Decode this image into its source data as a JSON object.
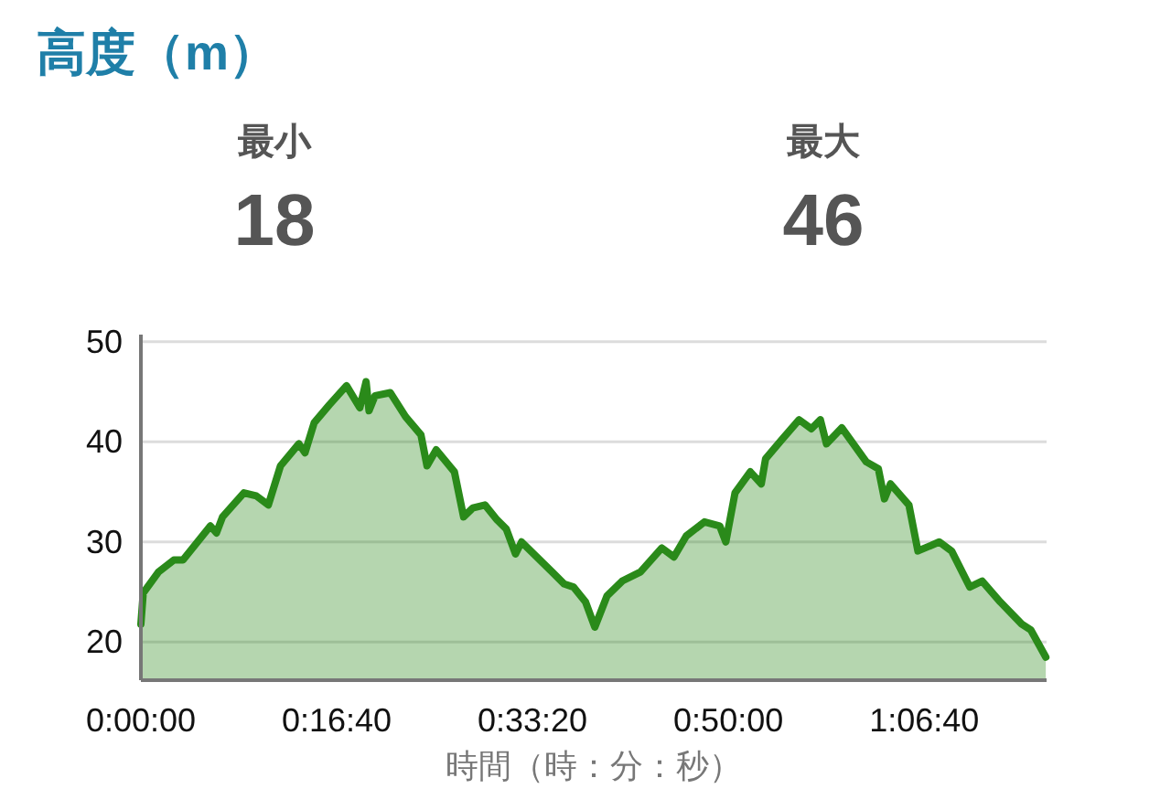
{
  "chart_data": {
    "type": "area",
    "title": "高度（m）",
    "xlabel": "時間（時：分：秒）",
    "annotations": [
      "最小",
      "18",
      "最大",
      "46"
    ],
    "series": [
      {
        "color": "#2a8a1a",
        "x": [
          0,
          12,
          90,
          168,
          215,
          277,
          355,
          386,
          417,
          526,
          589,
          651,
          713,
          807,
          838,
          885,
          963,
          1050,
          1118,
          1150,
          1165,
          1196,
          1274,
          1352,
          1430,
          1461,
          1508,
          1601,
          1648,
          1695,
          1757,
          1819,
          1866,
          1913,
          1944,
          2100,
          2162,
          2209,
          2271,
          2318,
          2380,
          2458,
          2551,
          2660,
          2722,
          2785,
          2878,
          2956,
          2987,
          3034,
          3112,
          3168,
          3190,
          3268,
          3361,
          3424,
          3470,
          3501,
          3579,
          3704,
          3766,
          3797,
          3828,
          3922,
          3968,
          4077,
          4140,
          4233,
          4296,
          4389,
          4498,
          4545,
          4621
        ],
        "values": [
          21.8,
          24.9,
          27.0,
          28.2,
          28.2,
          29.7,
          31.6,
          30.9,
          32.5,
          34.9,
          34.6,
          33.7,
          37.6,
          39.8,
          38.9,
          41.9,
          43.7,
          45.6,
          43.4,
          46.0,
          43.1,
          44.6,
          44.9,
          42.5,
          40.7,
          37.6,
          39.2,
          37.0,
          32.5,
          33.4,
          33.7,
          32.2,
          31.3,
          28.8,
          30.0,
          27.0,
          25.8,
          25.5,
          24.0,
          21.5,
          24.6,
          26.1,
          27.0,
          29.4,
          28.5,
          30.6,
          32.0,
          31.6,
          30.0,
          34.9,
          37.0,
          35.8,
          38.3,
          40.1,
          42.2,
          41.3,
          42.2,
          39.8,
          41.4,
          38.0,
          37.3,
          34.3,
          35.8,
          33.7,
          29.1,
          30.0,
          29.1,
          25.5,
          26.1,
          24.0,
          21.8,
          21.2,
          18.5
        ]
      }
    ],
    "xlim": [
      0,
      4625
    ],
    "ylim": [
      16.2,
      50.7
    ],
    "xticks": [
      {
        "value": 0,
        "label": "0:00:00"
      },
      {
        "value": 1000,
        "label": "0:16:40"
      },
      {
        "value": 2000,
        "label": "0:33:20"
      },
      {
        "value": 3000,
        "label": "0:50:00"
      },
      {
        "value": 4000,
        "label": "1:06:40"
      }
    ],
    "yticks": [
      20,
      30,
      40,
      50
    ],
    "grid": "y",
    "marker": "none",
    "line_style": "solid"
  }
}
